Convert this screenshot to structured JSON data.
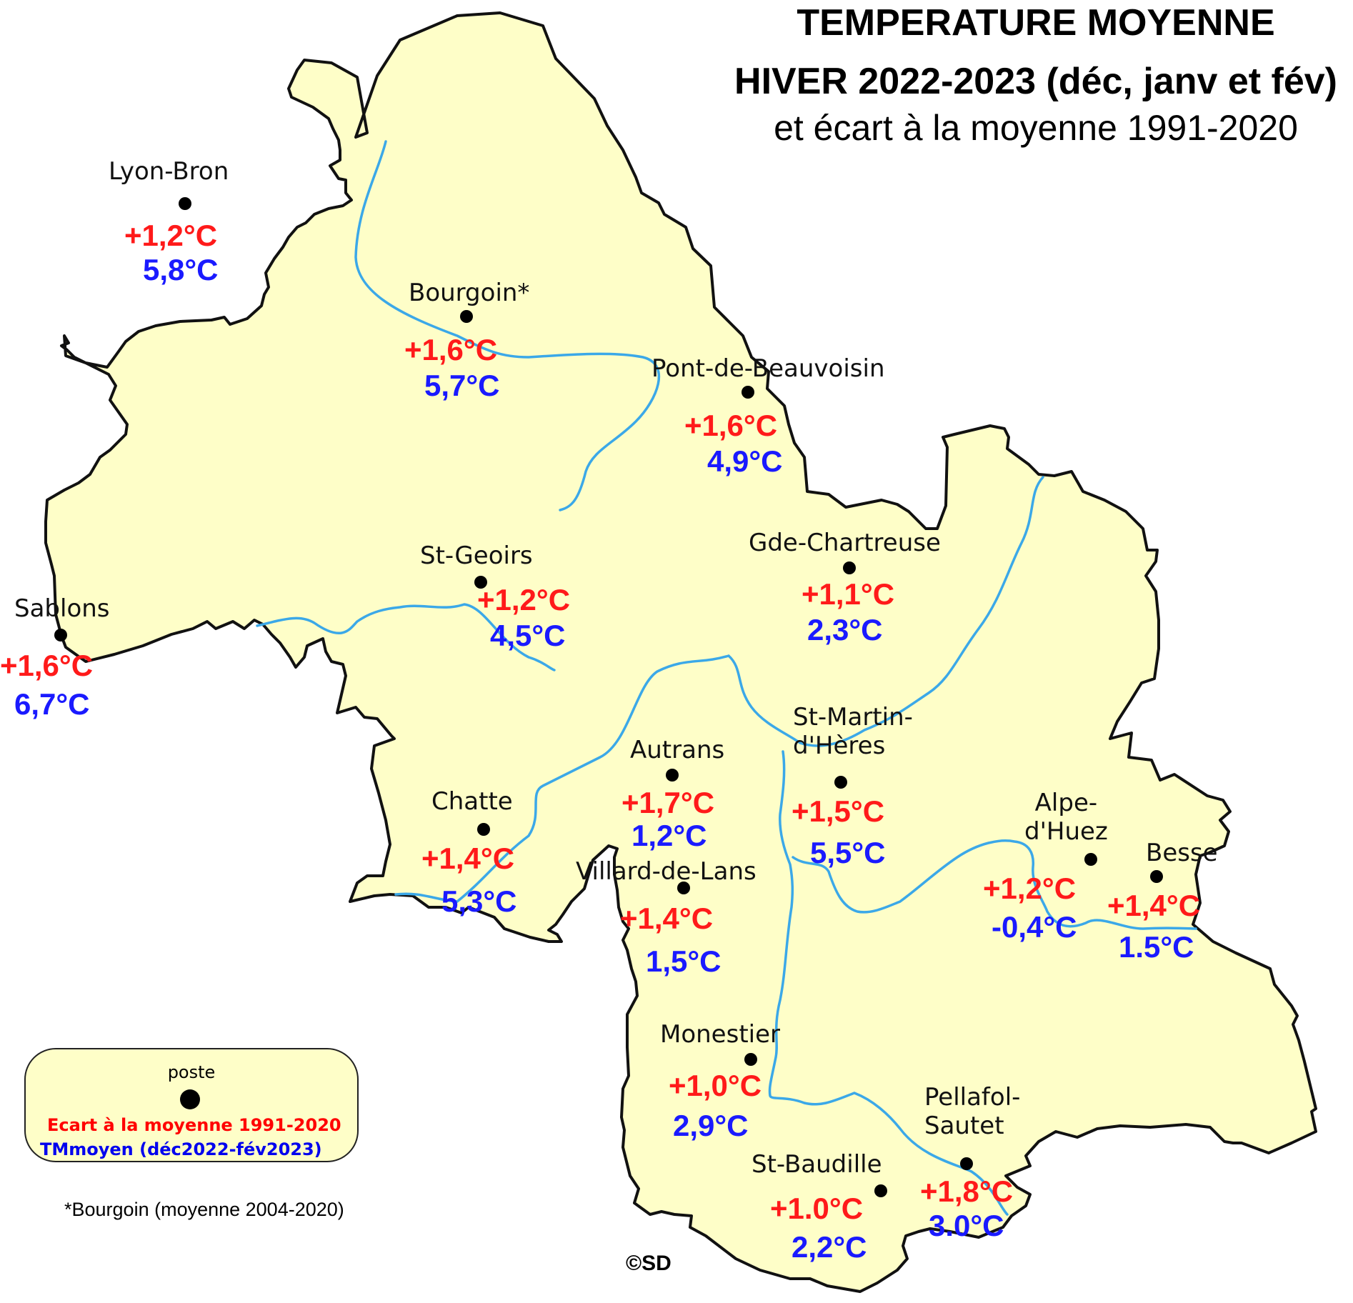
{
  "title": {
    "line1": "TEMPERATURE MOYENNE",
    "line2": "HIVER 2022-2023 (déc, janv et fév)",
    "line3": "et écart à la moyenne 1991-2020"
  },
  "colors": {
    "land": "#fefec8",
    "border": "#111111",
    "river": "#3ba8e8",
    "anomaly": "#ff1a1a",
    "mean": "#1a1aff"
  },
  "stations": [
    {
      "id": "lyon-bron",
      "name": "Lyon-Bron",
      "anomaly": "+1,2°C",
      "mean": "5,8°C"
    },
    {
      "id": "bourgoin",
      "name": "Bourgoin*",
      "anomaly": "+1,6°C",
      "mean": "5,7°C"
    },
    {
      "id": "pont-de-beauvoisin",
      "name": "Pont-de-Beauvoisin",
      "anomaly": "+1,6°C",
      "mean": "4,9°C"
    },
    {
      "id": "st-geoirs",
      "name": "St-Geoirs",
      "anomaly": "+1,2°C",
      "mean": "4,5°C"
    },
    {
      "id": "gde-chartreuse",
      "name": "Gde-Chartreuse",
      "anomaly": "+1,1°C",
      "mean": "2,3°C"
    },
    {
      "id": "sablons",
      "name": "Sablons",
      "anomaly": "+1,6°C",
      "mean": "6,7°C"
    },
    {
      "id": "st-martin-dheres",
      "name": "St-Martin-\nd'Hères",
      "anomaly": "+1,5°C",
      "mean": "5,5°C"
    },
    {
      "id": "autrans",
      "name": "Autrans",
      "anomaly": "+1,7°C",
      "mean": "1,2°C"
    },
    {
      "id": "chatte",
      "name": "Chatte",
      "anomaly": "+1,4°C",
      "mean": "5,3°C"
    },
    {
      "id": "villard-de-lans",
      "name": "Villard-de-Lans",
      "anomaly": "+1,4°C",
      "mean": "1,5°C"
    },
    {
      "id": "alpe-dhuez",
      "name": "Alpe-\nd'Huez",
      "anomaly": "+1,2°C",
      "mean": "-0,4°C"
    },
    {
      "id": "besse",
      "name": "Besse",
      "anomaly": "+1,4°C",
      "mean": "1.5°C"
    },
    {
      "id": "monestier",
      "name": "Monestier",
      "anomaly": "+1,0°C",
      "mean": "2,9°C"
    },
    {
      "id": "pellafol-sautet",
      "name": "Pellafol-\nSautet",
      "anomaly": "+1,8°C",
      "mean": "3.0°C"
    },
    {
      "id": "st-baudille",
      "name": "St-Baudille",
      "anomaly": "+1.0°C",
      "mean": "2,2°C"
    }
  ],
  "legend": {
    "poste": "poste",
    "anomaly_label": "Ecart à la moyenne 1991-2020",
    "mean_label": "TMmoyen (déc2022-fév2023)"
  },
  "footnote": "*Bourgoin (moyenne 2004-2020)",
  "copyright": "©SD"
}
